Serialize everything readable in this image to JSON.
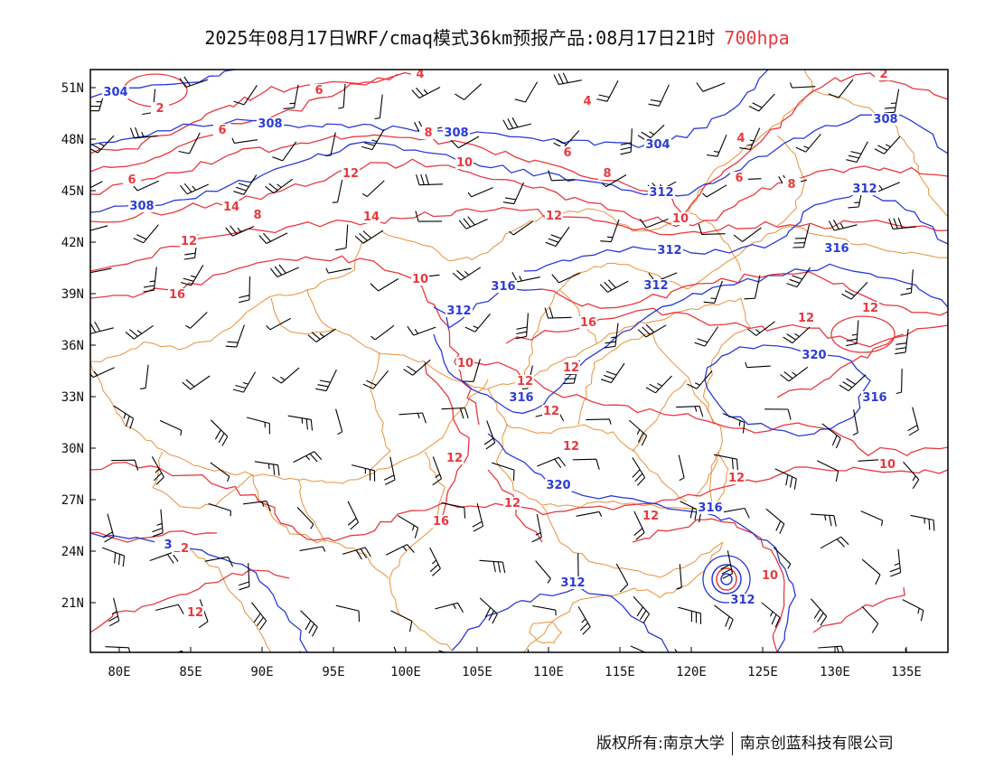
{
  "header": {
    "title": "2025年08月17日WRF/cmaq模式36km预报产品:08月17日21时",
    "level": "700hpa"
  },
  "map": {
    "lat_labels": [
      "51N",
      "48N",
      "45N",
      "42N",
      "39N",
      "36N",
      "33N",
      "30N",
      "27N",
      "24N",
      "21N"
    ],
    "lon_labels": [
      "80E",
      "85E",
      "90E",
      "95E",
      "100E",
      "105E",
      "110E",
      "115E",
      "120E",
      "125E",
      "130E",
      "135E"
    ],
    "colors": {
      "height_contour": "#2a3bd6",
      "temperature_contour": "#e8393f",
      "boundary": "#e8913a",
      "wind_barb": "#000000",
      "frame": "#000000"
    },
    "height_labels": [
      "304",
      "308",
      "308",
      "304",
      "308",
      "312",
      "308",
      "312",
      "312",
      "316",
      "316",
      "312",
      "312",
      "316",
      "320",
      "320",
      "316",
      "316",
      "312",
      "312",
      "3"
    ],
    "temp_labels": [
      "2",
      "4",
      "4",
      "6",
      "2",
      "6",
      "8",
      "8",
      "6",
      "4",
      "10",
      "6",
      "8",
      "6",
      "12",
      "12",
      "10",
      "8",
      "14",
      "14",
      "12",
      "10",
      "16",
      "16",
      "12",
      "10",
      "14",
      "12",
      "12",
      "12",
      "12",
      "16",
      "12",
      "12",
      "12",
      "12",
      "12",
      "12",
      "10",
      "10",
      "12"
    ]
  },
  "footer": {
    "copyright": "版权所有:南京大学",
    "company": "南京创蓝科技有限公司"
  }
}
